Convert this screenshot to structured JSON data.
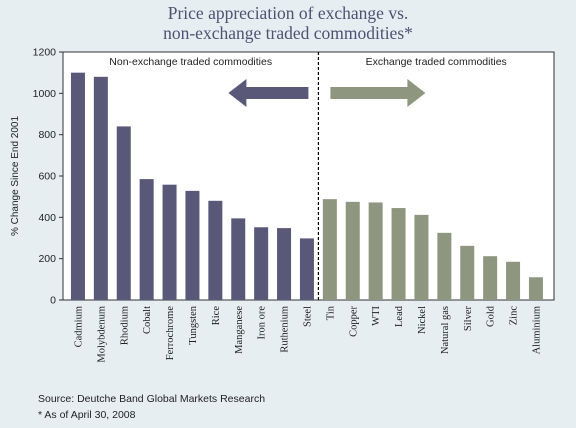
{
  "title_line1": "Price appreciation of exchange vs.",
  "title_line2": "non-exchange traded commodities*",
  "source": "Source: Deutche Band Global Markets Research",
  "note": "* As of April 30, 2008",
  "colors": {
    "non_exchange_bar": "#5a5878",
    "exchange_bar": "#8e9680",
    "background": "#e7eef2",
    "plot_background": "#ffffff",
    "title": "#4e5272"
  },
  "chart_data": {
    "type": "bar",
    "ylabel": "% Change Since End 2001",
    "ylim": [
      0,
      1200
    ],
    "yticks": [
      0,
      200,
      400,
      600,
      800,
      1000,
      1200
    ],
    "grid": false,
    "groups": [
      {
        "label": "Non-exchange traded commodities",
        "arrow": "left",
        "color": "#5a5878",
        "categories": [
          "Cadmium",
          "Molybdenum",
          "Rhodium",
          "Cobalt",
          "Ferrochrome",
          "Tungsten",
          "Rice",
          "Manganese",
          "Iron ore",
          "Ruthenium",
          "Steel"
        ],
        "values": [
          1100,
          1080,
          840,
          585,
          558,
          528,
          480,
          395,
          352,
          348,
          298
        ]
      },
      {
        "label": "Exchange traded commodities",
        "arrow": "right",
        "color": "#8e9680",
        "categories": [
          "Tin",
          "Copper",
          "WTI",
          "Lead",
          "Nickel",
          "Natural gas",
          "Silver",
          "Gold",
          "Zinc",
          "Aluminium"
        ],
        "values": [
          488,
          475,
          472,
          445,
          412,
          325,
          262,
          212,
          185,
          110
        ]
      }
    ]
  }
}
